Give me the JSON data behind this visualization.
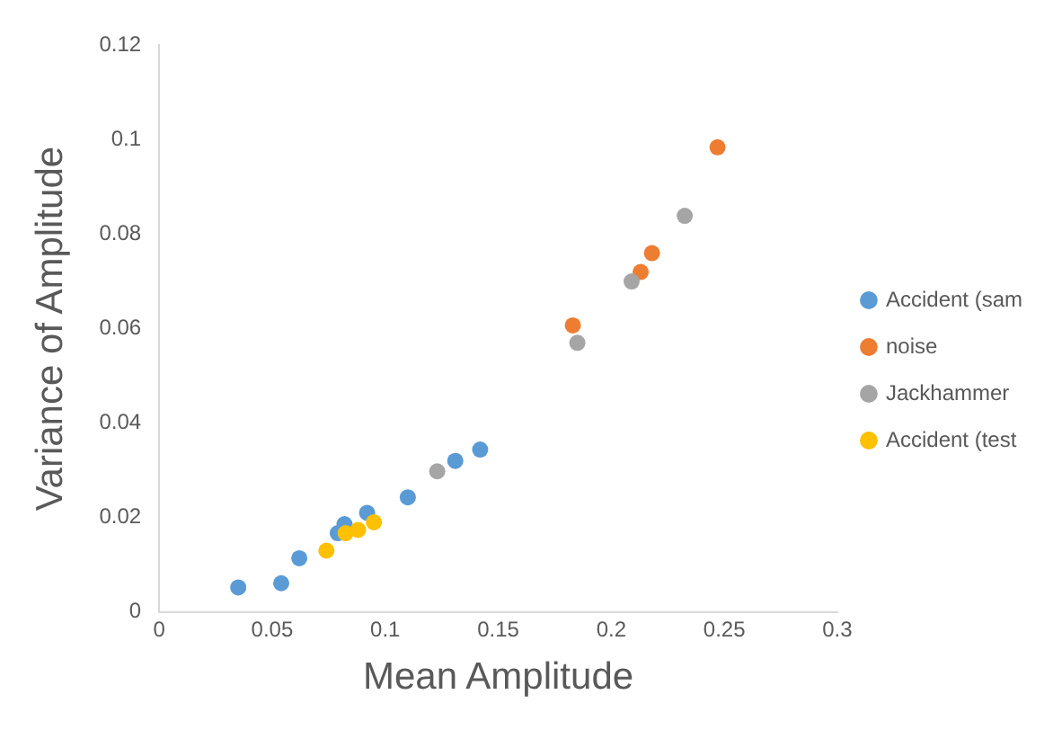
{
  "chart_data": {
    "type": "scatter",
    "xlabel": "Mean Amplitude",
    "ylabel": "Variance of Amplitude",
    "xlim": [
      0,
      0.3
    ],
    "xticks": [
      0,
      0.05,
      0.1,
      0.15,
      0.2,
      0.25,
      0.3
    ],
    "ylim": [
      0,
      0.12
    ],
    "yticks": [
      0,
      0.02,
      0.04,
      0.06,
      0.08,
      0.1,
      0.12
    ],
    "grid": false,
    "legend": "right",
    "marker": "circle",
    "series": [
      {
        "name": "Accident (sam",
        "color": "#5b9bd5",
        "x": [
          0.035,
          0.054,
          0.062,
          0.079,
          0.082,
          0.092,
          0.11,
          0.131,
          0.142
        ],
        "values": [
          0.0052,
          0.0061,
          0.0114,
          0.0167,
          0.0186,
          0.021,
          0.0243,
          0.032,
          0.0344
        ]
      },
      {
        "name": "noise",
        "color": "#ed7d31",
        "x": [
          0.183,
          0.213,
          0.218,
          0.247
        ],
        "values": [
          0.0607,
          0.072,
          0.076,
          0.0984
        ]
      },
      {
        "name": "Jackhammer",
        "color": "#a5a5a5",
        "x": [
          0.123,
          0.185,
          0.209,
          0.2325
        ],
        "values": [
          0.0298,
          0.057,
          0.07,
          0.0839
        ]
      },
      {
        "name": "Accident (test",
        "color": "#ffc000",
        "x": [
          0.074,
          0.0825,
          0.088,
          0.095
        ],
        "values": [
          0.013,
          0.0167,
          0.0174,
          0.019
        ]
      }
    ]
  }
}
